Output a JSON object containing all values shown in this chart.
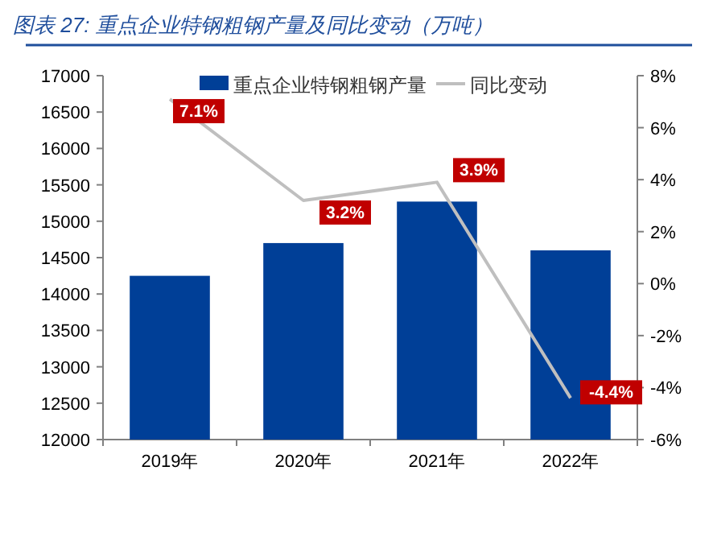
{
  "chart_data": {
    "type": "bar",
    "title": "图表 27:  重点企业特钢粗钢产量及同比变动（万吨）",
    "categories": [
      "2019年",
      "2020年",
      "2021年",
      "2022年"
    ],
    "series": [
      {
        "name": "重点企业特钢粗钢产量",
        "color": "#003f97",
        "values": [
          14250,
          14700,
          15270,
          14600
        ]
      },
      {
        "name": "同比变动",
        "type": "line",
        "axis": "y2",
        "color": "#bfbfbf",
        "values": [
          7.1,
          3.2,
          3.9,
          -4.4
        ],
        "value_labels": [
          "7.1%",
          "3.2%",
          "3.9%",
          "-4.4%"
        ]
      }
    ],
    "ylim": [
      12000,
      17000
    ],
    "yticks": [
      12000,
      12500,
      13000,
      13500,
      14000,
      14500,
      15000,
      15500,
      16000,
      16500,
      17000
    ],
    "y2lim": [
      -6,
      8
    ],
    "y2ticks": [
      {
        "value": -6,
        "label": "-6%"
      },
      {
        "value": -4,
        "label": "-4%"
      },
      {
        "value": -2,
        "label": "-2%"
      },
      {
        "value": 0,
        "label": "0%"
      },
      {
        "value": 2,
        "label": "2%"
      },
      {
        "value": 4,
        "label": "4%"
      },
      {
        "value": 6,
        "label": "6%"
      },
      {
        "value": 8,
        "label": "8%"
      }
    ],
    "legend": "top",
    "marker": "none",
    "line_style": "solid"
  }
}
